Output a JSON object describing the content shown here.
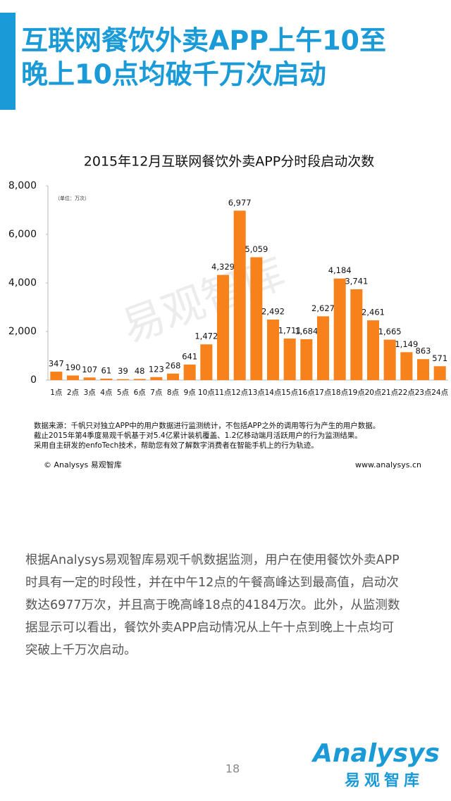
{
  "header": {
    "title_lines": [
      "互联网餐饮外卖APP上午10至",
      "晚上10点均破千万次启动"
    ]
  },
  "chart_data": {
    "type": "bar",
    "title": "2015年12月互联网餐饮外卖APP分时段启动次数",
    "unit_note": "（单位：万次）",
    "watermark": "易观智库",
    "categories": [
      "1点",
      "2点",
      "3点",
      "4点",
      "5点",
      "6点",
      "7点",
      "8点",
      "9点",
      "10点",
      "11点",
      "12点",
      "13点",
      "14点",
      "15点",
      "16点",
      "17点",
      "18点",
      "19点",
      "20点",
      "21点",
      "22点",
      "23点",
      "24点"
    ],
    "values": [
      347,
      190,
      107,
      61,
      39,
      48,
      123,
      268,
      641,
      1472,
      4329,
      6977,
      5059,
      2492,
      1711,
      1684,
      2627,
      4184,
      3741,
      2461,
      1665,
      1149,
      863,
      571
    ],
    "value_labels": [
      "347",
      "190",
      "107",
      "61",
      "39",
      "48",
      "123",
      "268",
      "641",
      "1,472",
      "4,329",
      "6,977",
      "5,059",
      "2,492",
      "1,711",
      "1,684",
      "2,627",
      "4,184",
      "3,741",
      "2,461",
      "1,665",
      "1,149",
      "863",
      "571"
    ],
    "color": "#f7821b",
    "ylim": [
      0,
      8000
    ],
    "yticks": [
      0,
      {
        "value": 2000,
        "label": "2,000"
      },
      {
        "value": 4000,
        "label": "4,000"
      },
      {
        "value": 6000,
        "label": "6,000"
      },
      {
        "value": 8000,
        "label": "8,000"
      }
    ],
    "grid": false
  },
  "source_notes": [
    "数据来源：千帆只对独立APP中的用户数据进行监测统计，不包括APP之外的调用等行为产生的用户数据。",
    "截止2015年第4季度易观千帆基于对5.4亿累计装机覆盖、1.2亿移动端月活跃用户的行为监测结果。",
    "采用自主研发的enfoTech技术，帮助您有效了解数字消费者在智能手机上的行为轨迹。"
  ],
  "footer_left": "© Analysys 易观智库",
  "footer_right": "www.analysys.cn",
  "body_lines": [
    "根据Analysys易观智库易观千帆数据监测，用户在使用餐饮外卖APP",
    "时具有一定的时段性，并在中午12点的午餐高峰达到最高值，启动次",
    "数达6977万次，并且高于晚高峰18点的4184万次。此外，从监测数",
    "据显示可以看出，餐饮外卖APP启动情况从上午十点到晚上十点均可",
    "突破上千万次启动。"
  ],
  "page_number": "18",
  "logo": {
    "name": "Analysys",
    "subtitle": "易观智库"
  }
}
